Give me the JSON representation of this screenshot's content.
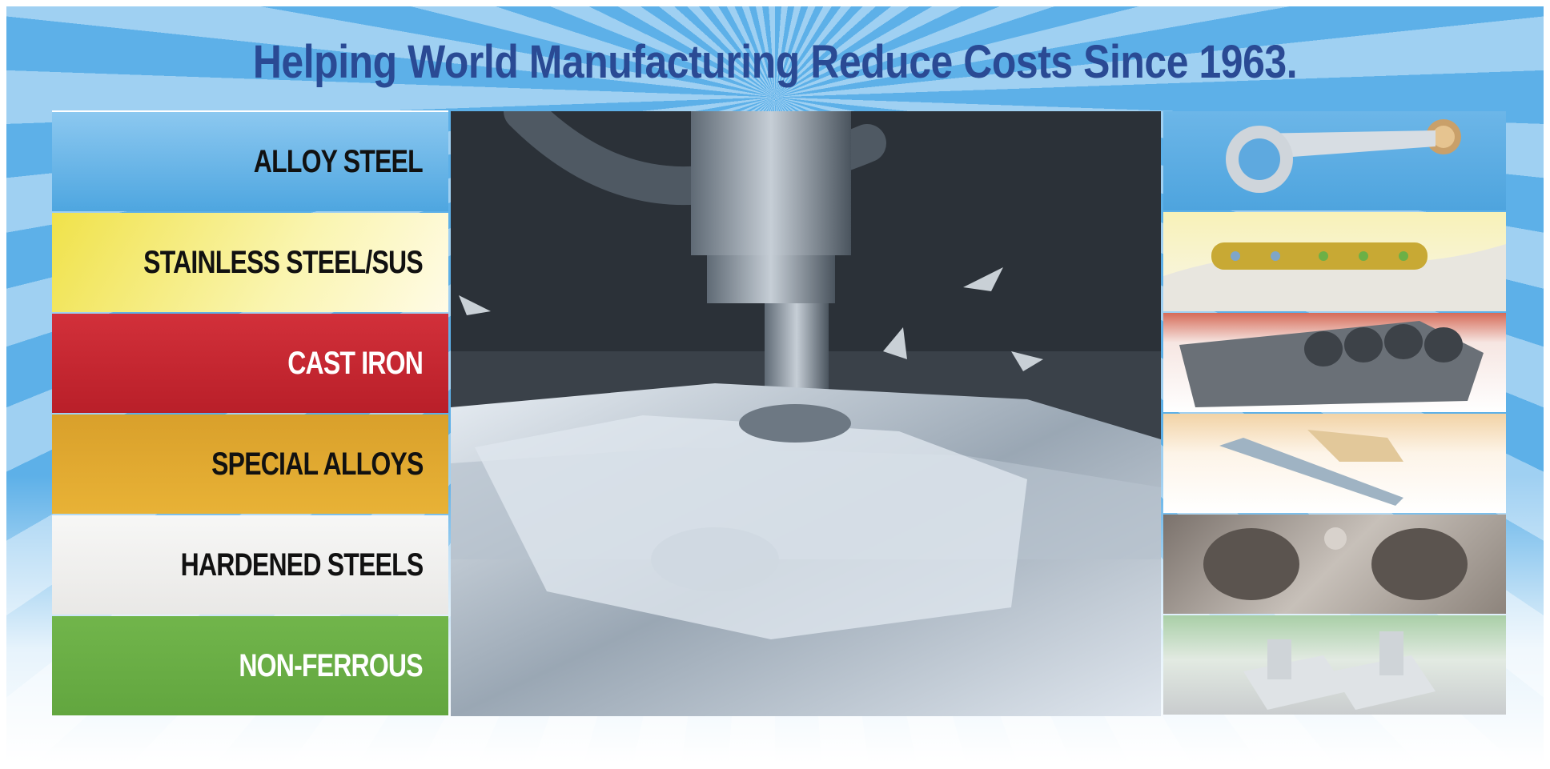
{
  "headline": "Helping World Manufacturing Reduce Costs Since 1963.",
  "categories": [
    {
      "label": "ALLOY STEEL",
      "bg": "#5aaee4",
      "text_color": "#111111"
    },
    {
      "label": "STAINLESS STEEL/SUS",
      "bg": "#f4ec7a",
      "text_color": "#111111"
    },
    {
      "label": "CAST IRON",
      "bg": "#c9252e",
      "text_color": "#ffffff"
    },
    {
      "label": "SPECIAL ALLOYS",
      "bg": "#e3ac2e",
      "text_color": "#111111"
    },
    {
      "label": "HARDENED STEELS",
      "bg": "#f1f0ee",
      "text_color": "#111111"
    },
    {
      "label": "NON-FERROUS",
      "bg": "#6cb046",
      "text_color": "#ffffff"
    }
  ],
  "parts": [
    {
      "name": "connecting-rod-image"
    },
    {
      "name": "bone-plate-image"
    },
    {
      "name": "engine-block-image"
    },
    {
      "name": "orthopedic-plate-image"
    },
    {
      "name": "mold-cavity-image"
    },
    {
      "name": "machined-bracket-image"
    }
  ],
  "colors": {
    "headline": "#2a4a94",
    "background_light": "#9fd0f2",
    "background_dark": "#5db0e8"
  }
}
